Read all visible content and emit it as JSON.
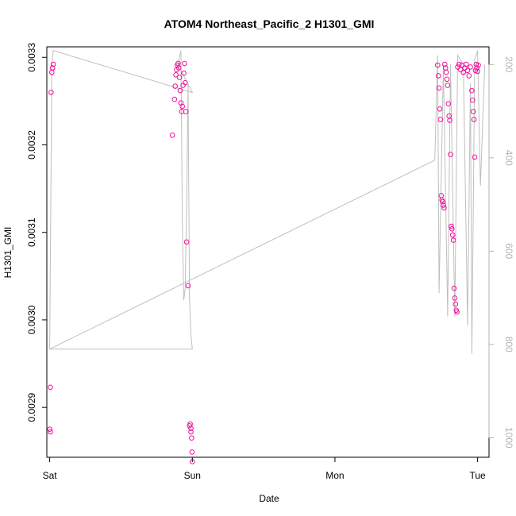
{
  "chart_data": {
    "type": "scatter",
    "title": "ATOM4 Northeast_Pacific_2 H1301_GMI",
    "xlabel": "Date",
    "ylabel": "H1301_GMI",
    "xlim": [
      -0.02,
      3.08
    ],
    "ylim": [
      0.002843,
      0.003312
    ],
    "x_ticks": [
      {
        "value": 0,
        "label": "Sat"
      },
      {
        "value": 1,
        "label": "Sun"
      },
      {
        "value": 2,
        "label": "Mon"
      },
      {
        "value": 3,
        "label": "Tue"
      }
    ],
    "y_ticks": [
      0.0029,
      0.003,
      0.0031,
      0.0032,
      0.0033
    ],
    "y_tick_labels": [
      "0.0029",
      "0.0030",
      "0.0031",
      "0.0032",
      "0.0033"
    ],
    "y2_lim": [
      1042,
      162
    ],
    "y2_ticks": [
      200,
      400,
      600,
      800,
      1000
    ],
    "y2_tick_labels": [
      "200",
      "400",
      "600",
      "800",
      "1000"
    ],
    "colors": {
      "points": "#ee1199",
      "pressure_line": "#bfbfbf",
      "axis": "#000000",
      "right_axis": "#b3b3b3"
    },
    "series": [
      {
        "values_kind": "H1301_GMI",
        "points": [
          [
            0.01,
            0.00326
          ],
          [
            0.015,
            0.003283
          ],
          [
            0.02,
            0.003288
          ],
          [
            0.025,
            0.003292
          ],
          [
            0.005,
            0.002923
          ],
          [
            0.0,
            0.002875
          ],
          [
            0.005,
            0.002872
          ],
          [
            0.86,
            0.003211
          ],
          [
            0.875,
            0.003252
          ],
          [
            0.88,
            0.003267
          ],
          [
            0.885,
            0.00328
          ],
          [
            0.89,
            0.003286
          ],
          [
            0.895,
            0.003291
          ],
          [
            0.9,
            0.003293
          ],
          [
            0.905,
            0.003288
          ],
          [
            0.91,
            0.003277
          ],
          [
            0.915,
            0.003262
          ],
          [
            0.92,
            0.003248
          ],
          [
            0.925,
            0.003238
          ],
          [
            0.93,
            0.003244
          ],
          [
            0.935,
            0.003268
          ],
          [
            0.94,
            0.003282
          ],
          [
            0.945,
            0.003293
          ],
          [
            0.95,
            0.003271
          ],
          [
            0.955,
            0.003238
          ],
          [
            0.96,
            0.003089
          ],
          [
            0.97,
            0.003039
          ],
          [
            0.98,
            0.002879
          ],
          [
            0.985,
            0.002881
          ],
          [
            0.99,
            0.002876
          ],
          [
            0.99,
            0.002872
          ],
          [
            0.995,
            0.002865
          ],
          [
            0.998,
            0.002849
          ],
          [
            1.0,
            0.002838
          ],
          [
            2.72,
            0.003291
          ],
          [
            2.725,
            0.003279
          ],
          [
            2.73,
            0.003265
          ],
          [
            2.735,
            0.003241
          ],
          [
            2.74,
            0.003229
          ],
          [
            2.745,
            0.003142
          ],
          [
            2.75,
            0.003137
          ],
          [
            2.755,
            0.003135
          ],
          [
            2.76,
            0.003131
          ],
          [
            2.765,
            0.003128
          ],
          [
            2.77,
            0.003292
          ],
          [
            2.775,
            0.003288
          ],
          [
            2.78,
            0.003283
          ],
          [
            2.785,
            0.003275
          ],
          [
            2.79,
            0.003268
          ],
          [
            2.795,
            0.003247
          ],
          [
            2.8,
            0.003233
          ],
          [
            2.805,
            0.003228
          ],
          [
            2.81,
            0.003189
          ],
          [
            2.815,
            0.003107
          ],
          [
            2.82,
            0.003104
          ],
          [
            2.825,
            0.003097
          ],
          [
            2.83,
            0.003091
          ],
          [
            2.835,
            0.003036
          ],
          [
            2.84,
            0.003025
          ],
          [
            2.845,
            0.003018
          ],
          [
            2.85,
            0.003011
          ],
          [
            2.855,
            0.003009
          ],
          [
            2.86,
            0.003289
          ],
          [
            2.87,
            0.003292
          ],
          [
            2.88,
            0.003286
          ],
          [
            2.89,
            0.003291
          ],
          [
            2.9,
            0.003283
          ],
          [
            2.91,
            0.003288
          ],
          [
            2.92,
            0.003292
          ],
          [
            2.93,
            0.003285
          ],
          [
            2.94,
            0.003279
          ],
          [
            2.95,
            0.003289
          ],
          [
            2.96,
            0.003262
          ],
          [
            2.965,
            0.003251
          ],
          [
            2.97,
            0.003238
          ],
          [
            2.975,
            0.003229
          ],
          [
            2.98,
            0.003186
          ],
          [
            2.985,
            0.003285
          ],
          [
            2.99,
            0.003292
          ],
          [
            2.995,
            0.003288
          ],
          [
            3.0,
            0.003284
          ],
          [
            3.005,
            0.003291
          ]
        ]
      },
      {
        "values_kind": "pressure",
        "line": [
          [
            0.0,
            810
          ],
          [
            0.015,
            200
          ],
          [
            0.025,
            170
          ],
          [
            1.0,
            260
          ],
          [
            0.9,
            200
          ],
          [
            0.92,
            170
          ],
          [
            0.93,
            540
          ],
          [
            0.94,
            705
          ],
          [
            0.95,
            680
          ],
          [
            0.96,
            500
          ],
          [
            0.97,
            240
          ],
          [
            0.98,
            700
          ],
          [
            0.99,
            780
          ],
          [
            1.0,
            810
          ],
          [
            0.0,
            810
          ],
          [
            2.7,
            405
          ],
          [
            2.72,
            180
          ],
          [
            2.73,
            690
          ],
          [
            2.76,
            200
          ],
          [
            2.79,
            740
          ],
          [
            2.81,
            200
          ],
          [
            2.84,
            740
          ],
          [
            2.86,
            180
          ],
          [
            2.9,
            200
          ],
          [
            2.93,
            760
          ],
          [
            2.95,
            240
          ],
          [
            2.96,
            820
          ],
          [
            2.98,
            190
          ],
          [
            3.0,
            170
          ],
          [
            3.02,
            460
          ],
          [
            3.05,
            200
          ]
        ]
      }
    ]
  }
}
